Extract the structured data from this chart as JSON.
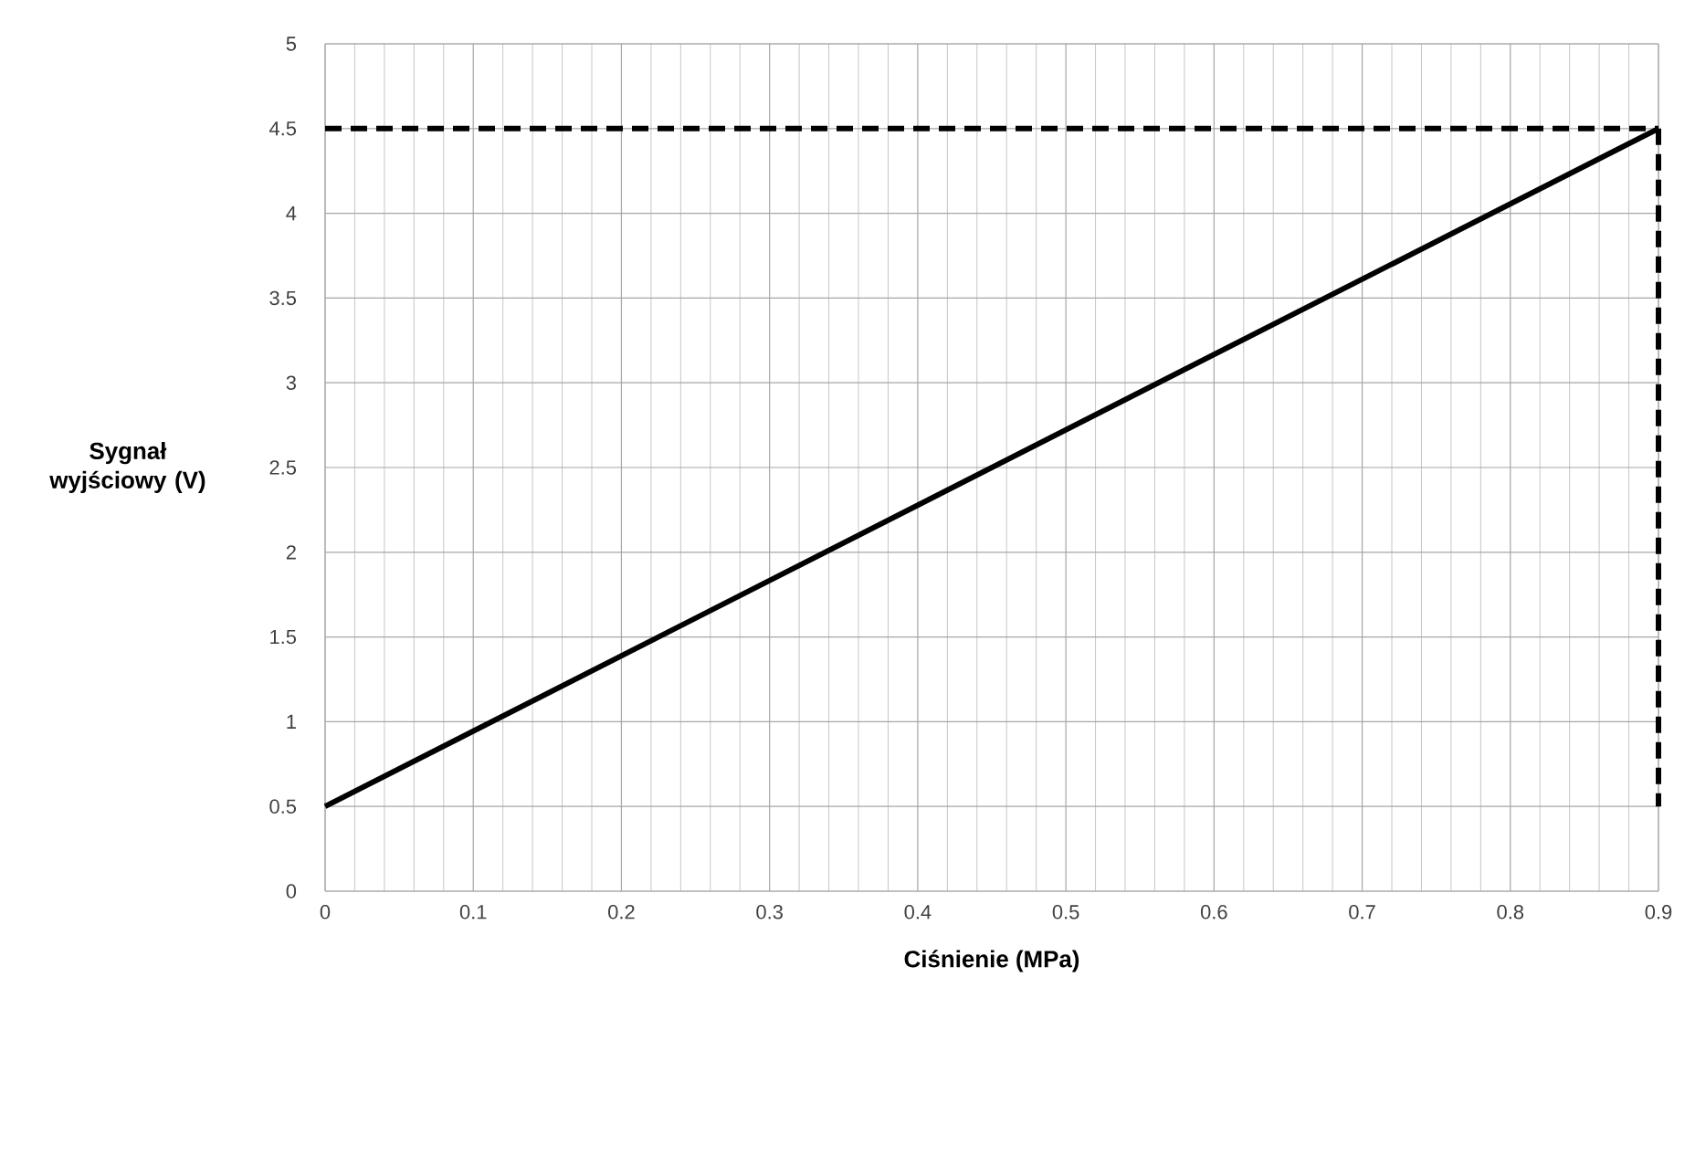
{
  "chart_data": {
    "type": "line",
    "xlabel": "Ciśnienie (MPa)",
    "ylabel": "Sygnał wyjściowy (V)",
    "xlim": [
      0,
      0.9
    ],
    "ylim": [
      0,
      5
    ],
    "xticks": [
      0,
      0.1,
      0.2,
      0.3,
      0.4,
      0.5,
      0.6,
      0.7,
      0.8,
      0.9
    ],
    "yticks": [
      0,
      0.5,
      1,
      1.5,
      2,
      2.5,
      3,
      3.5,
      4,
      4.5,
      5
    ],
    "grid": true,
    "x": [
      0,
      0.9
    ],
    "series": [
      {
        "color": "#000000",
        "line_style": "solid",
        "values": [
          0.5,
          4.5
        ]
      },
      {
        "color": "#000000",
        "line_style": "dashed",
        "values": [
          4.5,
          4.5
        ]
      },
      {
        "color": "#000000",
        "line_style": "dashed",
        "x": [
          0.9,
          0.9
        ],
        "values": [
          4.5,
          0.5
        ]
      }
    ]
  }
}
